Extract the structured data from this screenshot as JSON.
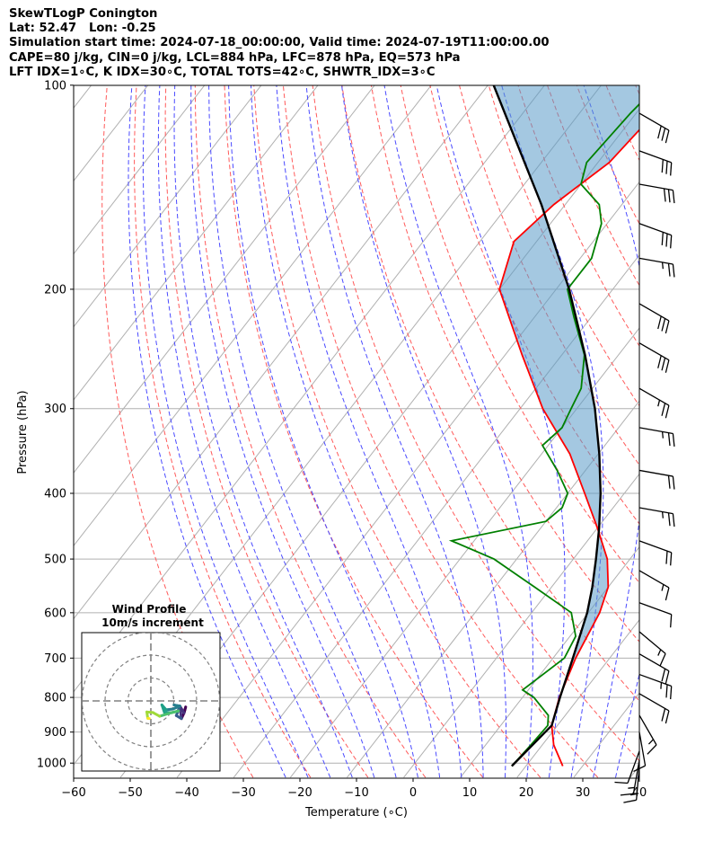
{
  "header": {
    "line1": "SkewTLogP Conington",
    "line2": "Lat: 52.47   Lon: -0.25",
    "line3": "Simulation start time: 2024-07-18_00:00:00, Valid time: 2024-07-19T11:00:00.00",
    "line4": "CAPE=80 j/kg, CIN=0 j/kg, LCL=884 hPa, LFC=878 hPa, EQ=573 hPa",
    "line5": "LFT IDX=1∘C, K IDX=30∘C, TOTAL TOTS=42∘C, SHWTR_IDX=3∘C"
  },
  "chart_data": {
    "type": "skewt-logp",
    "xlabel": "Temperature (∘C)",
    "ylabel": "Pressure (hPa)",
    "xlim": [
      -60,
      40
    ],
    "ylim": [
      1040,
      100
    ],
    "x_ticks": [
      "−60",
      "−50",
      "−40",
      "−30",
      "−20",
      "−10",
      "0",
      "10",
      "20",
      "30",
      "40"
    ],
    "y_ticks": [
      "100",
      "200",
      "300",
      "400",
      "500",
      "600",
      "700",
      "800",
      "900",
      "1000"
    ],
    "temperature": {
      "color": "#ff0000",
      "points": [
        [
          1010,
          26.5
        ],
        [
          940,
          22
        ],
        [
          880,
          19
        ],
        [
          800,
          16.5
        ],
        [
          700,
          14
        ],
        [
          600,
          12
        ],
        [
          550,
          10
        ],
        [
          500,
          6
        ],
        [
          450,
          0
        ],
        [
          400,
          -7
        ],
        [
          350,
          -15
        ],
        [
          300,
          -26
        ],
        [
          250,
          -37
        ],
        [
          200,
          -50
        ],
        [
          170,
          -54
        ],
        [
          150,
          -52
        ],
        [
          130,
          -48
        ],
        [
          100,
          -46
        ]
      ]
    },
    "dewpoint": {
      "color": "#008000",
      "points": [
        [
          1010,
          17.5
        ],
        [
          940,
          18
        ],
        [
          880,
          18.3
        ],
        [
          850,
          17
        ],
        [
          800,
          12
        ],
        [
          780,
          9
        ],
        [
          700,
          12
        ],
        [
          650,
          11
        ],
        [
          600,
          7
        ],
        [
          550,
          -3
        ],
        [
          500,
          -14
        ],
        [
          470,
          -24
        ],
        [
          440,
          -10
        ],
        [
          420,
          -9
        ],
        [
          400,
          -10
        ],
        [
          370,
          -15
        ],
        [
          340,
          -21
        ],
        [
          320,
          -20
        ],
        [
          300,
          -21
        ],
        [
          280,
          -22
        ],
        [
          250,
          -26
        ],
        [
          220,
          -33
        ],
        [
          200,
          -38
        ],
        [
          180,
          -38
        ],
        [
          160,
          -41
        ],
        [
          150,
          -44
        ],
        [
          140,
          -50
        ],
        [
          130,
          -52
        ],
        [
          110,
          -51
        ],
        [
          100,
          -50
        ]
      ]
    },
    "parcel": {
      "color": "#000000",
      "points": [
        [
          1010,
          17.5
        ],
        [
          880,
          19
        ],
        [
          800,
          16.6
        ],
        [
          700,
          13.5
        ],
        [
          600,
          9.8
        ],
        [
          550,
          7.2
        ],
        [
          500,
          4.0
        ],
        [
          450,
          0.3
        ],
        [
          400,
          -4.2
        ],
        [
          350,
          -9.8
        ],
        [
          300,
          -16.8
        ],
        [
          250,
          -25.9
        ],
        [
          200,
          -37.7
        ],
        [
          150,
          -54.2
        ],
        [
          100,
          -79
        ]
      ]
    },
    "cape_fill_color": "#5a9ac8",
    "hodograph": {
      "title": "Wind Profile",
      "subtitle": "10m/s increment",
      "rings": 3
    },
    "wind_barbs": [
      {
        "p": 1010,
        "speed": 15,
        "dir": 5
      },
      {
        "p": 990,
        "speed": 15,
        "dir": 10
      },
      {
        "p": 960,
        "speed": 10,
        "dir": 20
      },
      {
        "p": 900,
        "speed": 10,
        "dir": 350
      },
      {
        "p": 850,
        "speed": 15,
        "dir": 330
      },
      {
        "p": 790,
        "speed": 20,
        "dir": 300
      },
      {
        "p": 740,
        "speed": 25,
        "dir": 290
      },
      {
        "p": 690,
        "speed": 20,
        "dir": 300
      },
      {
        "p": 640,
        "speed": 15,
        "dir": 310
      },
      {
        "p": 580,
        "speed": 10,
        "dir": 290
      },
      {
        "p": 520,
        "speed": 15,
        "dir": 300
      },
      {
        "p": 470,
        "speed": 20,
        "dir": 290
      },
      {
        "p": 420,
        "speed": 25,
        "dir": 280
      },
      {
        "p": 370,
        "speed": 20,
        "dir": 280
      },
      {
        "p": 320,
        "speed": 25,
        "dir": 280
      },
      {
        "p": 280,
        "speed": 25,
        "dir": 300
      },
      {
        "p": 240,
        "speed": 30,
        "dir": 300
      },
      {
        "p": 210,
        "speed": 30,
        "dir": 300
      },
      {
        "p": 180,
        "speed": 25,
        "dir": 280
      },
      {
        "p": 160,
        "speed": 30,
        "dir": 290
      },
      {
        "p": 140,
        "speed": 30,
        "dir": 280
      },
      {
        "p": 125,
        "speed": 30,
        "dir": 290
      },
      {
        "p": 110,
        "speed": 30,
        "dir": 300
      }
    ]
  }
}
